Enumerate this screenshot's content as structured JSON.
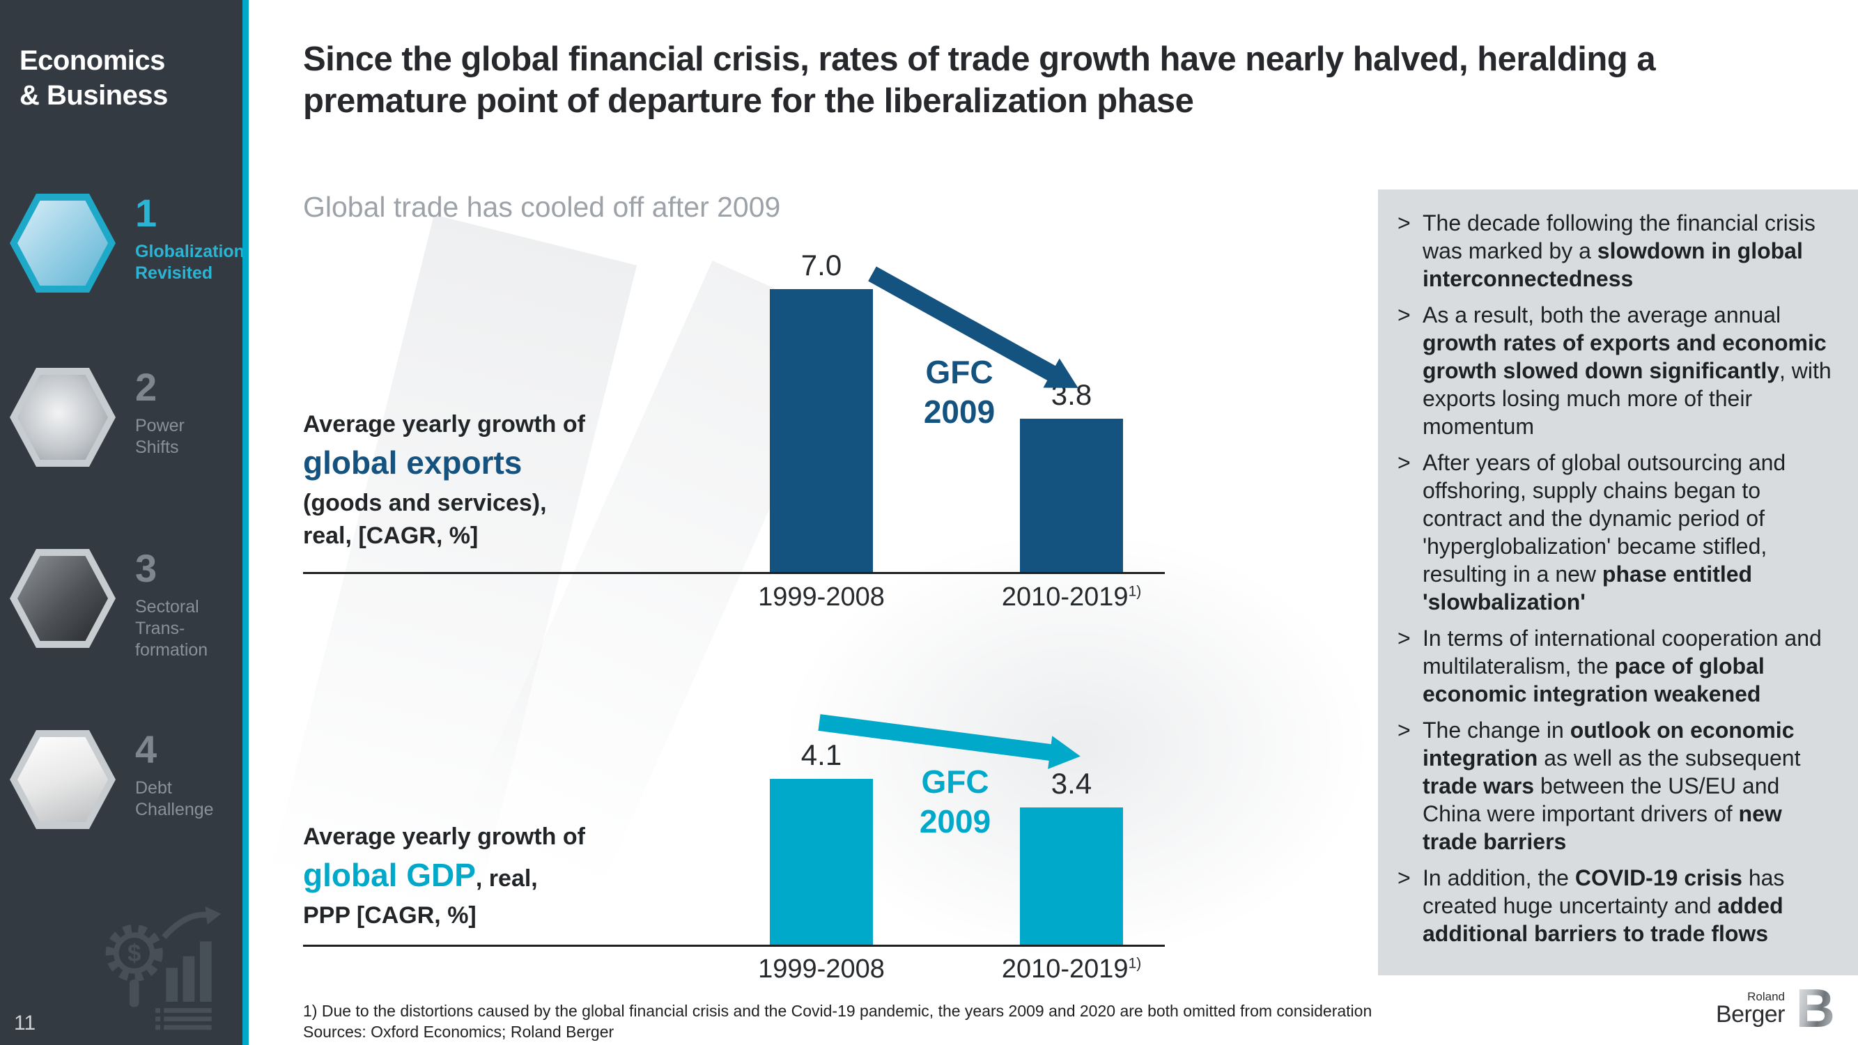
{
  "colors": {
    "sidebar_bg": "#343A42",
    "accent_cyan": "#00A8C9",
    "dark_blue": "#14527F",
    "panel_bg": "#D9DCDE"
  },
  "sidebar": {
    "section_title": "Economics\n& Business",
    "items": [
      {
        "number": "1",
        "label": "Globalization\nRevisited",
        "icon": "touchscreen-photo-icon",
        "active": true
      },
      {
        "number": "2",
        "label": "Power\nShifts",
        "icon": "globe-photo-icon",
        "active": false
      },
      {
        "number": "3",
        "label": "Sectoral\nTrans-\nformation",
        "icon": "lab-robot-photo-icon",
        "active": false
      },
      {
        "number": "4",
        "label": "Debt\nChallenge",
        "icon": "coin-stacks-photo-icon",
        "active": false
      }
    ],
    "page_number": "11"
  },
  "header": {
    "title": "Since the global financial crisis, rates of trade growth have nearly halved, heralding a premature point of departure for the liberalization phase",
    "subtitle": "Global trade has cooled off after 2009"
  },
  "chart_data": [
    {
      "type": "bar",
      "label_prefix": "Average yearly growth of",
      "label_emphasis": "global exports",
      "label_mid": "",
      "label_suffix_lines": [
        "(goods and services),",
        "real, [CAGR, %]"
      ],
      "categories": [
        "1999-2008",
        "2010-2019"
      ],
      "category_sups": [
        "",
        "1)"
      ],
      "values": [
        7.0,
        3.8
      ],
      "value_labels": [
        "7.0",
        "3.8"
      ],
      "annotation_lines": [
        "GFC",
        "2009"
      ],
      "bar_color": "#14527F",
      "annotation_color": "#14527F",
      "arrow_color": "#14527F",
      "ylim": [
        0,
        7.5
      ],
      "grid": false,
      "unit": "CAGR %"
    },
    {
      "type": "bar",
      "label_prefix": "Average yearly growth of",
      "label_emphasis": "global GDP",
      "label_mid": ", real,",
      "label_suffix_lines": [
        "PPP [CAGR, %]"
      ],
      "categories": [
        "1999-2008",
        "2010-2019"
      ],
      "category_sups": [
        "",
        "1)"
      ],
      "values": [
        4.1,
        3.4
      ],
      "value_labels": [
        "4.1",
        "3.4"
      ],
      "annotation_lines": [
        "GFC",
        "2009"
      ],
      "bar_color": "#00A8C9",
      "annotation_color": "#00A8C9",
      "arrow_color": "#00A8C9",
      "ylim": [
        0,
        7.5
      ],
      "grid": false,
      "unit": "CAGR %"
    }
  ],
  "right_panel": {
    "marker": ">",
    "bullets": [
      {
        "segments": [
          {
            "text": "The decade following the financial crisis was marked by a "
          },
          {
            "text": "slowdown in global interconnectedness",
            "bold": true
          }
        ]
      },
      {
        "segments": [
          {
            "text": "As a result, both the average annual "
          },
          {
            "text": "growth rates of exports and economic growth slowed down significantly",
            "bold": true
          },
          {
            "text": ", with exports losing much more of their momentum"
          }
        ]
      },
      {
        "segments": [
          {
            "text": "After years of global outsourcing and offshoring, supply chains began to contract and the dynamic period of 'hyperglobalization' became stifled, resulting in a new "
          },
          {
            "text": "phase entitled 'slowbalization'",
            "bold": true
          }
        ]
      },
      {
        "segments": [
          {
            "text": "In terms of international cooperation and multilateralism, the "
          },
          {
            "text": "pace of global economic integration weakened",
            "bold": true
          }
        ]
      },
      {
        "segments": [
          {
            "text": "The change in "
          },
          {
            "text": "outlook on economic integration",
            "bold": true
          },
          {
            "text": " as well as the subsequent "
          },
          {
            "text": "trade wars",
            "bold": true
          },
          {
            "text": " between the US/EU and China were important drivers of "
          },
          {
            "text": "new trade barriers",
            "bold": true
          }
        ]
      },
      {
        "segments": [
          {
            "text": "In addition, the "
          },
          {
            "text": "COVID-19 crisis",
            "bold": true
          },
          {
            "text": " has created huge uncertainty and "
          },
          {
            "text": "added additional barriers to trade flows",
            "bold": true
          }
        ]
      }
    ]
  },
  "footer": {
    "footnote": "1) Due to the distortions caused by the global financial crisis and the Covid-19 pandemic, the years 2009 and 2020 are both omitted from consideration",
    "sources": "Sources: Oxford Economics; Roland Berger"
  },
  "logo": {
    "roland": "Roland",
    "berger": "Berger",
    "b_mark": "B"
  }
}
